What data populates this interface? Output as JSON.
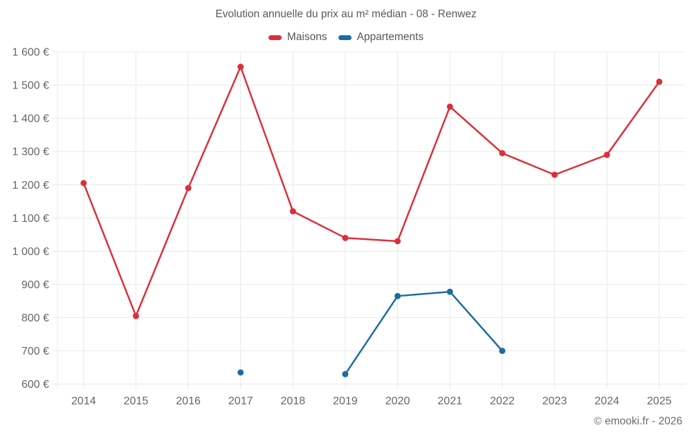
{
  "title": "Evolution annuelle du prix au m² médian - 08 - Renwez",
  "footer": "© emooki.fr - 2026",
  "chart_data": {
    "type": "line",
    "title": "Evolution annuelle du prix au m² médian - 08 - Renwez",
    "categories": [
      "2014",
      "2015",
      "2016",
      "2017",
      "2018",
      "2019",
      "2020",
      "2021",
      "2022",
      "2023",
      "2024",
      "2025"
    ],
    "series": [
      {
        "name": "Maisons",
        "color": "#dc2f3a",
        "values": [
          1205,
          805,
          1190,
          1555,
          1120,
          1040,
          1030,
          1435,
          1295,
          1230,
          1290,
          1510
        ]
      },
      {
        "name": "Appartements",
        "color": "#1b6ca1",
        "values": [
          null,
          null,
          null,
          635,
          null,
          630,
          865,
          878,
          700,
          null,
          null,
          null
        ]
      }
    ],
    "xlabel": "",
    "ylabel": "",
    "ylim": [
      600,
      1600
    ],
    "ytick_step": 100,
    "y_suffix": " €",
    "grid": true,
    "legend_position": "top"
  },
  "colors": {
    "grid": "#e8e8e8",
    "axis_text": "#666666",
    "title_text": "#58595b"
  }
}
